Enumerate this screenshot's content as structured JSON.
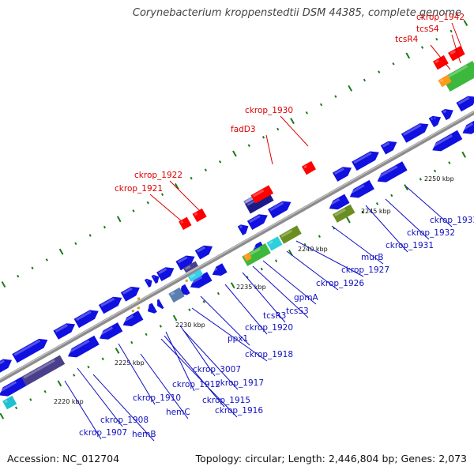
{
  "title": "Corynebacterium kroppenstedtii DSM 44385, complete genome",
  "footer": {
    "accession": "Accession: NC_012704",
    "topology": "Topology: circular; Length: 2,446,804 bp; Genes: 2,073"
  },
  "colors": {
    "backbone": "#8c8c8c",
    "gene_forward": "#1010e0",
    "rna": "#ff0000",
    "tick": "#1a7a1a",
    "label_dna": "#1010c0",
    "label_rna": "#dd0000"
  },
  "scale_labels": [
    "2220 kbp",
    "2225 kbp",
    "2230 kbp",
    "2235 kbp",
    "2240 kbp",
    "2245 kbp",
    "2250 kbp"
  ],
  "gene_labels": [
    {
      "text": "ckrop_1942",
      "kind": "rna"
    },
    {
      "text": "tcsS4",
      "kind": "rna"
    },
    {
      "text": "tcsR4",
      "kind": "rna"
    },
    {
      "text": "ckrop_1930",
      "kind": "rna"
    },
    {
      "text": "fadD3",
      "kind": "rna"
    },
    {
      "text": "ckrop_1922",
      "kind": "rna"
    },
    {
      "text": "ckrop_1921",
      "kind": "rna"
    },
    {
      "text": "ckrop_1933",
      "kind": "dna"
    },
    {
      "text": "ckrop_1932",
      "kind": "dna"
    },
    {
      "text": "ckrop_1931",
      "kind": "dna"
    },
    {
      "text": "murB",
      "kind": "dna"
    },
    {
      "text": "ckrop_1927",
      "kind": "dna"
    },
    {
      "text": "ckrop_1926",
      "kind": "dna"
    },
    {
      "text": "gpmA",
      "kind": "dna"
    },
    {
      "text": "tcsS3",
      "kind": "dna"
    },
    {
      "text": "tcsR3",
      "kind": "dna"
    },
    {
      "text": "ckrop_1920",
      "kind": "dna"
    },
    {
      "text": "ppx1",
      "kind": "dna"
    },
    {
      "text": "ckrop_1918",
      "kind": "dna"
    },
    {
      "text": "ckrop_3007",
      "kind": "dna"
    },
    {
      "text": "ckrop_1917",
      "kind": "dna"
    },
    {
      "text": "ckrop_1912",
      "kind": "dna"
    },
    {
      "text": "ckrop_1915",
      "kind": "dna"
    },
    {
      "text": "ckrop_1916",
      "kind": "dna"
    },
    {
      "text": "ckrop_1910",
      "kind": "dna"
    },
    {
      "text": "hemC",
      "kind": "dna"
    },
    {
      "text": "ckrop_1908",
      "kind": "dna"
    },
    {
      "text": "hemB",
      "kind": "dna"
    },
    {
      "text": "ckrop_1907",
      "kind": "dna"
    }
  ]
}
